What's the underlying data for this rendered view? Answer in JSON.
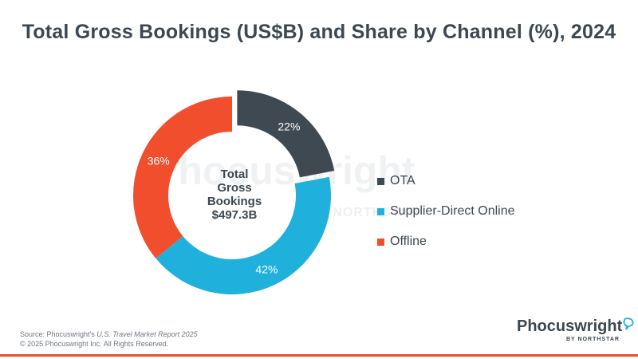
{
  "title": "Total Gross Bookings (US$B) and Share by Channel (%), 2024",
  "chart_data": {
    "type": "pie",
    "donut": true,
    "title": "Total Gross Bookings (US$B) and Share by Channel (%), 2024",
    "center_label": [
      "Total",
      "Gross",
      "Bookings",
      "$497.3B"
    ],
    "slices": [
      {
        "name": "OTA",
        "value": 22,
        "label": "22%",
        "color": "#3f4952"
      },
      {
        "name": "Supplier-Direct Online",
        "value": 42,
        "label": "42%",
        "color": "#1fb1dc"
      },
      {
        "name": "Offline",
        "value": 36,
        "label": "36%",
        "color": "#f04e2d"
      }
    ],
    "legend_position": "right",
    "exploded": "OTA"
  },
  "watermark": {
    "name": "Phocuswright",
    "sub": "BY NORTHSTAR"
  },
  "footer": {
    "source_prefix": "Source: Phocuswright's ",
    "source_italic": "U.S. Travel Market Report 2025",
    "copyright": "© 2025 Phocuswright Inc. All Rights Reserved."
  },
  "logo": {
    "name": "Phocuswright",
    "sub": "BY NORTHSTAR",
    "accent": "#1fb1dc"
  },
  "accent_bar_color": "#f04e23"
}
